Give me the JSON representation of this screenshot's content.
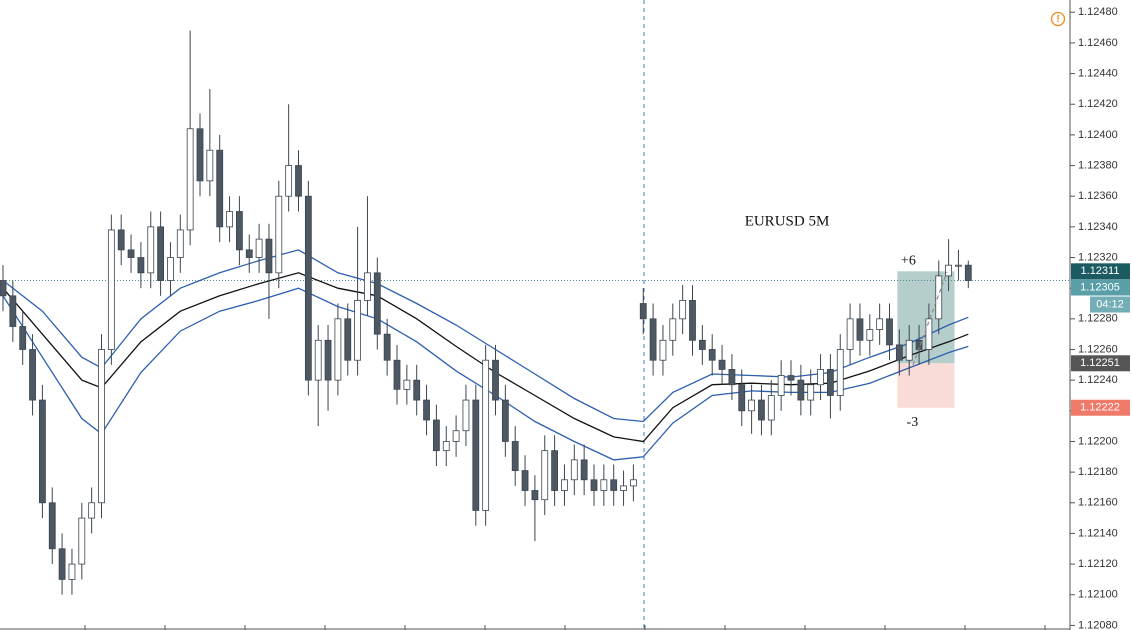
{
  "chart_data": {
    "type": "candlestick",
    "title": "EURUSD 5M",
    "alert_icon": "!",
    "ylim": [
      1.12077,
      1.12488
    ],
    "yticks": [
      {
        "value": 1.1208,
        "label": "1.12080"
      },
      {
        "value": 1.121,
        "label": "1.12100"
      },
      {
        "value": 1.1212,
        "label": "1.12120"
      },
      {
        "value": 1.1214,
        "label": "1.12140"
      },
      {
        "value": 1.1216,
        "label": "1.12160"
      },
      {
        "value": 1.1218,
        "label": "1.12180"
      },
      {
        "value": 1.122,
        "label": "1.12200"
      },
      {
        "value": 1.1222,
        "label": "1.12220"
      },
      {
        "value": 1.1224,
        "label": "1.12240"
      },
      {
        "value": 1.1226,
        "label": "1.12260"
      },
      {
        "value": 1.1228,
        "label": "1.12280"
      },
      {
        "value": 1.123,
        "label": "1.12300"
      },
      {
        "value": 1.1232,
        "label": "1.12320"
      },
      {
        "value": 1.1234,
        "label": "1.12340"
      },
      {
        "value": 1.1236,
        "label": "1.12360"
      },
      {
        "value": 1.1238,
        "label": "1.12380"
      },
      {
        "value": 1.124,
        "label": "1.12400"
      },
      {
        "value": 1.1242,
        "label": "1.12420"
      },
      {
        "value": 1.1244,
        "label": "1.12440"
      },
      {
        "value": 1.1246,
        "label": "1.12460"
      },
      {
        "value": 1.1248,
        "label": "1.12480"
      }
    ],
    "up_color": "#ffffff",
    "down_color": "#4d5863",
    "border_color": "#3b4550",
    "candles": {
      "open": [
        1.12305,
        1.12295,
        1.12275,
        1.1226,
        1.12227,
        1.1216,
        1.1213,
        1.1211,
        1.1212,
        1.1215,
        1.1216,
        1.1226,
        1.12338,
        1.12325,
        1.1232,
        1.1231,
        1.1234,
        1.12305,
        1.1232,
        1.12338,
        1.12404,
        1.1237,
        1.1239,
        1.1234,
        1.1235,
        1.12325,
        1.1232,
        1.12332,
        1.1231,
        1.1236,
        1.1238,
        1.1236,
        1.1224,
        1.12266,
        1.1224,
        1.1228,
        1.12253,
        1.12292,
        1.1231,
        1.1227,
        1.12253,
        1.12234,
        1.1224,
        1.12227,
        1.12214,
        1.12194,
        1.122,
        1.12207,
        1.12227,
        1.12155,
        1.12253,
        1.12227,
        1.122,
        1.12181,
        1.12168,
        1.12162,
        1.12194,
        1.12168,
        1.12175,
        1.12188,
        1.12175,
        1.12168,
        1.12175,
        1.12168,
        1.12171,
        1.1229,
        1.1228,
        1.12253,
        1.12266,
        1.1228,
        1.12292,
        1.12266,
        1.1226,
        1.12253,
        1.12247,
        1.12237,
        1.1222,
        1.12227,
        1.12214,
        1.1223,
        1.12243,
        1.1224,
        1.12227,
        1.12237,
        1.12247,
        1.1223,
        1.1226,
        1.1228,
        1.12266,
        1.12273,
        1.1228,
        1.12263,
        1.12253,
        1.12266,
        1.1226,
        1.1228,
        1.12308,
        1.12315,
        1.12315
      ],
      "high": [
        1.12315,
        1.12305,
        1.12285,
        1.1227,
        1.12237,
        1.1217,
        1.1214,
        1.1213,
        1.1216,
        1.1217,
        1.1227,
        1.12348,
        1.12348,
        1.12335,
        1.1233,
        1.1235,
        1.1235,
        1.1233,
        1.12348,
        1.12468,
        1.12414,
        1.1243,
        1.124,
        1.1236,
        1.1236,
        1.12335,
        1.12342,
        1.12342,
        1.1237,
        1.1242,
        1.1239,
        1.1237,
        1.12276,
        1.12276,
        1.1229,
        1.1229,
        1.1234,
        1.1236,
        1.1232,
        1.1228,
        1.12263,
        1.1225,
        1.1225,
        1.12237,
        1.12224,
        1.1221,
        1.12217,
        1.12237,
        1.12237,
        1.12263,
        1.12263,
        1.12237,
        1.1221,
        1.12191,
        1.12178,
        1.12204,
        1.12204,
        1.12185,
        1.12198,
        1.12198,
        1.12185,
        1.12185,
        1.12185,
        1.12181,
        1.12185,
        1.123,
        1.1229,
        1.12276,
        1.1229,
        1.12302,
        1.12302,
        1.12276,
        1.1227,
        1.12263,
        1.12257,
        1.12247,
        1.12237,
        1.12237,
        1.1224,
        1.12253,
        1.12253,
        1.1225,
        1.12247,
        1.12257,
        1.12257,
        1.1227,
        1.1229,
        1.1229,
        1.12283,
        1.1229,
        1.1229,
        1.12273,
        1.12276,
        1.12276,
        1.1229,
        1.12318,
        1.12332,
        1.12325,
        1.12318
      ],
      "low": [
        1.12285,
        1.12265,
        1.1225,
        1.12217,
        1.1215,
        1.1212,
        1.121,
        1.121,
        1.1211,
        1.1214,
        1.1215,
        1.1225,
        1.12315,
        1.1231,
        1.123,
        1.123,
        1.12295,
        1.12295,
        1.1231,
        1.12328,
        1.1236,
        1.1236,
        1.1233,
        1.1233,
        1.12315,
        1.1231,
        1.1231,
        1.1228,
        1.123,
        1.1235,
        1.1235,
        1.1223,
        1.1221,
        1.1222,
        1.1223,
        1.12243,
        1.12243,
        1.12282,
        1.1226,
        1.12243,
        1.12224,
        1.12224,
        1.12217,
        1.12204,
        1.12184,
        1.12184,
        1.1219,
        1.12197,
        1.12145,
        1.12145,
        1.12217,
        1.1219,
        1.12171,
        1.12158,
        1.12135,
        1.12152,
        1.12158,
        1.12158,
        1.12165,
        1.12165,
        1.12158,
        1.12158,
        1.12158,
        1.12158,
        1.12161,
        1.1227,
        1.12243,
        1.12243,
        1.12256,
        1.1227,
        1.12256,
        1.1225,
        1.12243,
        1.12237,
        1.12227,
        1.1221,
        1.12205,
        1.12204,
        1.12204,
        1.1222,
        1.1223,
        1.12217,
        1.12217,
        1.12227,
        1.12215,
        1.1222,
        1.1225,
        1.12256,
        1.12256,
        1.12263,
        1.12253,
        1.12243,
        1.12243,
        1.1225,
        1.1225,
        1.1227,
        1.12298,
        1.12305,
        1.123
      ],
      "close": [
        1.12295,
        1.12275,
        1.1226,
        1.12227,
        1.1216,
        1.1213,
        1.1211,
        1.1212,
        1.1215,
        1.1216,
        1.1226,
        1.12338,
        1.12325,
        1.1232,
        1.1231,
        1.1234,
        1.12305,
        1.1232,
        1.12338,
        1.12404,
        1.1237,
        1.1239,
        1.1234,
        1.1235,
        1.12325,
        1.1232,
        1.12332,
        1.1231,
        1.1236,
        1.1238,
        1.1236,
        1.1224,
        1.12266,
        1.1224,
        1.1228,
        1.12253,
        1.12292,
        1.1231,
        1.1227,
        1.12253,
        1.12234,
        1.1224,
        1.12227,
        1.12214,
        1.12194,
        1.122,
        1.12207,
        1.12227,
        1.12155,
        1.12253,
        1.12227,
        1.122,
        1.12181,
        1.12168,
        1.12162,
        1.12194,
        1.12168,
        1.12175,
        1.12188,
        1.12175,
        1.12168,
        1.12175,
        1.12168,
        1.12171,
        1.12175,
        1.1228,
        1.12253,
        1.12266,
        1.1228,
        1.12292,
        1.12266,
        1.1226,
        1.12253,
        1.12247,
        1.12237,
        1.1222,
        1.12227,
        1.12214,
        1.1223,
        1.12243,
        1.1224,
        1.12227,
        1.12237,
        1.12247,
        1.1223,
        1.1226,
        1.1228,
        1.12266,
        1.12273,
        1.1228,
        1.12263,
        1.12253,
        1.12266,
        1.1226,
        1.1228,
        1.12308,
        1.12315,
        1.12315,
        1.12305
      ]
    },
    "lines": {
      "x": [
        0,
        4,
        8,
        10,
        14,
        18,
        22,
        26,
        30,
        34,
        38,
        42,
        46,
        50,
        54,
        58,
        62,
        65,
        68,
        72,
        76,
        80,
        84,
        88,
        92,
        96,
        98
      ],
      "series": [
        {
          "color": "#2d5fb0",
          "values": [
            1.12305,
            1.12285,
            1.12255,
            1.12248,
            1.1228,
            1.123,
            1.1231,
            1.12318,
            1.12325,
            1.1231,
            1.12303,
            1.1229,
            1.12276,
            1.1226,
            1.12244,
            1.12228,
            1.12215,
            1.12213,
            1.12232,
            1.12244,
            1.12243,
            1.12242,
            1.12245,
            1.12255,
            1.12264,
            1.12276,
            1.12281
          ]
        },
        {
          "color": "#111111",
          "values": [
            1.123,
            1.1227,
            1.1224,
            1.12235,
            1.12265,
            1.12285,
            1.12295,
            1.12303,
            1.1231,
            1.123,
            1.12295,
            1.1228,
            1.12262,
            1.12245,
            1.1223,
            1.12215,
            1.12203,
            1.122,
            1.12222,
            1.12237,
            1.12238,
            1.12237,
            1.12238,
            1.12246,
            1.12256,
            1.12265,
            1.1227
          ]
        },
        {
          "color": "#2d5fb0",
          "values": [
            1.12295,
            1.12255,
            1.12215,
            1.12205,
            1.12245,
            1.12272,
            1.12285,
            1.12292,
            1.123,
            1.12288,
            1.1228,
            1.12265,
            1.12246,
            1.1223,
            1.12213,
            1.122,
            1.12188,
            1.1219,
            1.12212,
            1.1223,
            1.12233,
            1.12232,
            1.12232,
            1.12238,
            1.12248,
            1.12258,
            1.12262
          ]
        }
      ]
    },
    "last_price": {
      "value": 1.12305,
      "label": "1.12305",
      "countdown": "04:12",
      "color": "#5a9fa8"
    },
    "position": {
      "start": 90.8,
      "end": 96.6,
      "target": {
        "value": 1.12311,
        "label": "1.12311",
        "color": "#1c5a62"
      },
      "entry": {
        "value": 1.12251,
        "label": "1.12251",
        "color": "#555555"
      },
      "stop": {
        "value": 1.12222,
        "label": "1.12222",
        "color": "#ef7a6a"
      },
      "profit_label": "+6",
      "loss_label": "-3"
    }
  }
}
